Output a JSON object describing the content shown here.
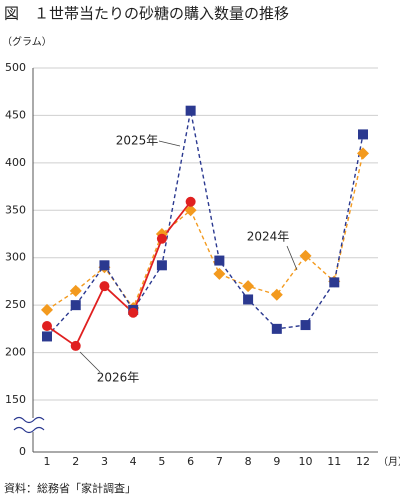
{
  "chart_data": {
    "type": "line",
    "title": "図　１世帯当たりの砂糖の購入数量の推移",
    "y_label": "（グラム）",
    "x_label": "（月）",
    "source": "資料：総務省「家計調査」",
    "categories": [
      "1",
      "2",
      "3",
      "4",
      "5",
      "6",
      "7",
      "8",
      "9",
      "10",
      "11",
      "12"
    ],
    "ylim": [
      0,
      500
    ],
    "axis_break": [
      0,
      150
    ],
    "yticks": [
      0,
      150,
      200,
      250,
      300,
      350,
      400,
      450,
      500
    ],
    "grid": true,
    "series": [
      {
        "name": "2024年",
        "color": "#f39a1e",
        "marker": "diamond",
        "dash": true,
        "values": [
          245,
          265,
          290,
          247,
          325,
          350,
          283,
          270,
          261,
          302,
          275,
          410
        ]
      },
      {
        "name": "2025年",
        "color": "#2b3990",
        "marker": "square",
        "dash": true,
        "values": [
          217,
          250,
          292,
          245,
          292,
          455,
          297,
          256,
          225,
          229,
          274,
          430
        ]
      },
      {
        "name": "2026年",
        "color": "#e02020",
        "marker": "circle",
        "dash": false,
        "values": [
          228,
          207,
          270,
          242,
          320,
          359,
          null,
          null,
          null,
          null,
          null,
          null
        ]
      }
    ]
  }
}
